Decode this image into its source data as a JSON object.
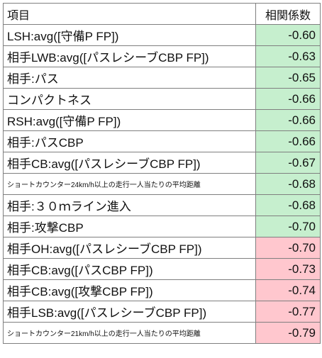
{
  "header": {
    "item": "項目",
    "coefficient": "相関係数"
  },
  "colors": {
    "green": "#c6efce",
    "red": "#ffc7ce"
  },
  "rows": [
    {
      "label": "LSH:avg([守備P FP])",
      "value": "-0.60",
      "highlight": "green"
    },
    {
      "label": "相手LWB:avg([パスレシーブCBP FP])",
      "value": "-0.63",
      "highlight": "green"
    },
    {
      "label": "相手:パス",
      "value": "-0.65",
      "highlight": "green"
    },
    {
      "label": "コンパクトネス",
      "value": "-0.66",
      "highlight": "green"
    },
    {
      "label": "RSH:avg([守備P FP])",
      "value": "-0.66",
      "highlight": "green"
    },
    {
      "label": "相手:パスCBP",
      "value": "-0.66",
      "highlight": "green"
    },
    {
      "label": "相手CB:avg([パスレシーブCBP FP])",
      "value": "-0.67",
      "highlight": "green"
    },
    {
      "label": "ショートカウンター24km/h以上の走行一人当たりの平均距離",
      "value": "-0.68",
      "highlight": "green",
      "small": true
    },
    {
      "label": "相手:３０ｍライン進入",
      "value": "-0.68",
      "highlight": "green"
    },
    {
      "label": "相手:攻撃CBP",
      "value": "-0.70",
      "highlight": "green"
    },
    {
      "label": "相手OH:avg([パスレシーブCBP FP])",
      "value": "-0.70",
      "highlight": "red"
    },
    {
      "label": "相手CB:avg([パスCBP FP])",
      "value": "-0.73",
      "highlight": "red"
    },
    {
      "label": "相手CB:avg([攻撃CBP FP])",
      "value": "-0.74",
      "highlight": "red"
    },
    {
      "label": "相手LSB:avg([パスレシーブCBP FP])",
      "value": "-0.77",
      "highlight": "red"
    },
    {
      "label": "ショートカウンター21km/h以上の走行一人当たりの平均距離",
      "value": "-0.79",
      "highlight": "red",
      "small": true
    }
  ]
}
